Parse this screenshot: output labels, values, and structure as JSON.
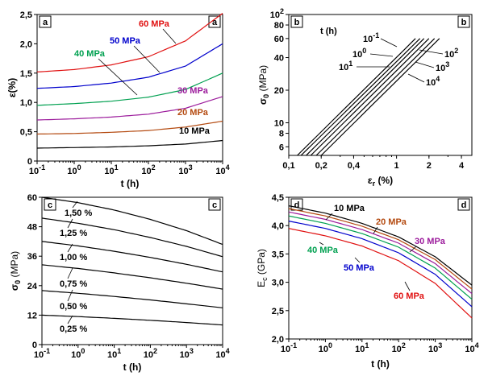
{
  "chart_data": [
    {
      "panel": "a",
      "type": "line",
      "xscale": "log",
      "xlim": [
        0.1,
        10000
      ],
      "ylim": [
        0,
        2.5
      ],
      "xticks": [
        0.1,
        1,
        10,
        100,
        1000,
        10000
      ],
      "xtick_labels": [
        [
          "10",
          "-1"
        ],
        [
          "10",
          "0"
        ],
        [
          "10",
          "1"
        ],
        [
          "10",
          "2"
        ],
        [
          "10",
          "3"
        ],
        [
          "10",
          "4"
        ]
      ],
      "yticks": [
        0,
        0.5,
        1,
        1.5,
        2,
        2.5
      ],
      "ytick_labels": [
        "0",
        "0,5",
        "1,0",
        "1,5",
        "2,0",
        "2,5"
      ],
      "xlabel": "t (h)",
      "ylabel": "ε(%)",
      "series": [
        {
          "name": "10 MPa",
          "color": "#000000",
          "x": [
            0.1,
            1,
            10,
            100,
            1000,
            10000
          ],
          "y": [
            0.22,
            0.23,
            0.24,
            0.26,
            0.29,
            0.35
          ]
        },
        {
          "name": "20 MPa",
          "color": "#b44a10",
          "x": [
            0.1,
            1,
            10,
            100,
            1000,
            10000
          ],
          "y": [
            0.46,
            0.47,
            0.49,
            0.52,
            0.58,
            0.68
          ]
        },
        {
          "name": "30 MPa",
          "color": "#9c1c9c",
          "x": [
            0.1,
            1,
            10,
            100,
            1000,
            10000
          ],
          "y": [
            0.7,
            0.72,
            0.75,
            0.8,
            0.9,
            1.1
          ]
        },
        {
          "name": "40 MPa",
          "color": "#00a050",
          "x": [
            0.1,
            1,
            10,
            100,
            1000,
            10000
          ],
          "y": [
            0.95,
            0.98,
            1.02,
            1.09,
            1.22,
            1.5
          ]
        },
        {
          "name": "50 MPa",
          "color": "#0000cc",
          "x": [
            0.1,
            1,
            10,
            100,
            1000,
            10000
          ],
          "y": [
            1.24,
            1.27,
            1.33,
            1.43,
            1.62,
            2.0
          ]
        },
        {
          "name": "60 MPa",
          "color": "#e01010",
          "x": [
            0.1,
            1,
            10,
            100,
            1000,
            10000
          ],
          "y": [
            1.52,
            1.56,
            1.64,
            1.78,
            2.05,
            2.52
          ]
        }
      ]
    },
    {
      "panel": "b",
      "type": "line",
      "xscale": "log",
      "yscale": "log",
      "xlim": [
        0.1,
        5
      ],
      "ylim": [
        5,
        100
      ],
      "xticks": [
        0.1,
        0.2,
        0.4,
        1,
        2,
        4
      ],
      "xtick_labels": [
        "0,1",
        "0,2",
        "0,4",
        "1",
        "2",
        "4"
      ],
      "yticks": [
        6,
        8,
        10,
        20,
        40,
        60,
        80,
        100
      ],
      "ytick_labels": [
        "6",
        "8",
        "10",
        "20",
        "40",
        "60",
        "80",
        [
          "10",
          "2"
        ]
      ],
      "xlabel": "εr (%)",
      "ylabel": "σ0 (MPa)",
      "title": "t (h)",
      "series": [
        {
          "name": "10^-1",
          "color": "#000000",
          "x": [
            0.12,
            1.5
          ],
          "y": [
            5,
            60
          ]
        },
        {
          "name": "10^0",
          "color": "#000000",
          "x": [
            0.13,
            1.65
          ],
          "y": [
            5,
            60
          ]
        },
        {
          "name": "10^1",
          "color": "#000000",
          "x": [
            0.145,
            1.8
          ],
          "y": [
            5,
            60
          ]
        },
        {
          "name": "10^2",
          "color": "#000000",
          "x": [
            0.16,
            2.0
          ],
          "y": [
            5,
            60
          ]
        },
        {
          "name": "10^3",
          "color": "#000000",
          "x": [
            0.18,
            2.25
          ],
          "y": [
            5,
            60
          ]
        },
        {
          "name": "10^4",
          "color": "#000000",
          "x": [
            0.2,
            2.5
          ],
          "y": [
            5,
            60
          ]
        }
      ]
    },
    {
      "panel": "c",
      "type": "line",
      "xscale": "log",
      "xlim": [
        0.1,
        10000
      ],
      "ylim": [
        0,
        60
      ],
      "xticks": [
        0.1,
        1,
        10,
        100,
        1000,
        10000
      ],
      "xtick_labels": [
        [
          "10",
          "-1"
        ],
        [
          "10",
          "0"
        ],
        [
          "10",
          "1"
        ],
        [
          "10",
          "2"
        ],
        [
          "10",
          "3"
        ],
        [
          "10",
          "4"
        ]
      ],
      "yticks": [
        0,
        12,
        24,
        36,
        48,
        60
      ],
      "ytick_labels": [
        "0",
        "12",
        "24",
        "36",
        "48",
        "60"
      ],
      "xlabel": "t (h)",
      "ylabel": "σ0 (MPa)",
      "series": [
        {
          "name": "0,25 %",
          "color": "#000000",
          "x": [
            0.1,
            1,
            10,
            100,
            1000,
            10000
          ],
          "y": [
            12.0,
            11.4,
            10.7,
            9.9,
            9.0,
            8.0
          ]
        },
        {
          "name": "0,50 %",
          "color": "#000000",
          "x": [
            0.1,
            1,
            10,
            100,
            1000,
            10000
          ],
          "y": [
            22.0,
            20.9,
            19.6,
            18.2,
            16.6,
            15.0
          ]
        },
        {
          "name": "0,75 %",
          "color": "#000000",
          "x": [
            0.1,
            1,
            10,
            100,
            1000,
            10000
          ],
          "y": [
            32.5,
            31.0,
            29.2,
            27.2,
            25.0,
            22.6
          ]
        },
        {
          "name": "1,00 %",
          "color": "#000000",
          "x": [
            0.1,
            1,
            10,
            100,
            1000,
            10000
          ],
          "y": [
            42.0,
            40.2,
            38.0,
            35.5,
            32.7,
            29.6
          ]
        },
        {
          "name": "1,25 %",
          "color": "#000000",
          "x": [
            0.1,
            1,
            10,
            100,
            1000,
            10000
          ],
          "y": [
            51.5,
            49.4,
            46.8,
            43.6,
            40.0,
            35.8
          ]
        },
        {
          "name": "1,50 %",
          "color": "#000000",
          "x": [
            0.1,
            1,
            10,
            100,
            1000,
            10000
          ],
          "y": [
            60.0,
            57.8,
            54.8,
            51.0,
            46.4,
            40.8
          ]
        }
      ]
    },
    {
      "panel": "d",
      "type": "line",
      "xscale": "log",
      "xlim": [
        0.1,
        10000
      ],
      "ylim": [
        2.0,
        4.5
      ],
      "xticks": [
        0.1,
        1,
        10,
        100,
        1000,
        10000
      ],
      "xtick_labels": [
        [
          "10",
          "-1"
        ],
        [
          "10",
          "0"
        ],
        [
          "10",
          "1"
        ],
        [
          "10",
          "2"
        ],
        [
          "10",
          "3"
        ],
        [
          "10",
          "4"
        ]
      ],
      "yticks": [
        2.0,
        2.5,
        3.0,
        3.5,
        4.0,
        4.5
      ],
      "ytick_labels": [
        "2,0",
        "2,5",
        "3,0",
        "3,5",
        "4,0",
        "4,5"
      ],
      "xlabel": "t (h)",
      "ylabel": "Ec (GPa)",
      "series": [
        {
          "name": "10 MPa",
          "color": "#000000",
          "x": [
            0.1,
            1,
            10,
            100,
            1000,
            10000
          ],
          "y": [
            4.35,
            4.22,
            4.04,
            3.8,
            3.45,
            2.95
          ]
        },
        {
          "name": "20 MPa",
          "color": "#b44a10",
          "x": [
            0.1,
            1,
            10,
            100,
            1000,
            10000
          ],
          "y": [
            4.3,
            4.17,
            3.99,
            3.75,
            3.4,
            2.88
          ]
        },
        {
          "name": "30 MPa",
          "color": "#9c1c9c",
          "x": [
            0.1,
            1,
            10,
            100,
            1000,
            10000
          ],
          "y": [
            4.24,
            4.11,
            3.93,
            3.69,
            3.33,
            2.8
          ]
        },
        {
          "name": "40 MPa",
          "color": "#00a050",
          "x": [
            0.1,
            1,
            10,
            100,
            1000,
            10000
          ],
          "y": [
            4.17,
            4.04,
            3.86,
            3.62,
            3.25,
            2.7
          ]
        },
        {
          "name": "50 MPa",
          "color": "#0000cc",
          "x": [
            0.1,
            1,
            10,
            100,
            1000,
            10000
          ],
          "y": [
            4.08,
            3.95,
            3.77,
            3.52,
            3.14,
            2.57
          ]
        },
        {
          "name": "60 MPa",
          "color": "#e01010",
          "x": [
            0.1,
            1,
            10,
            100,
            1000,
            10000
          ],
          "y": [
            3.95,
            3.82,
            3.64,
            3.38,
            2.98,
            2.37
          ]
        }
      ]
    }
  ]
}
